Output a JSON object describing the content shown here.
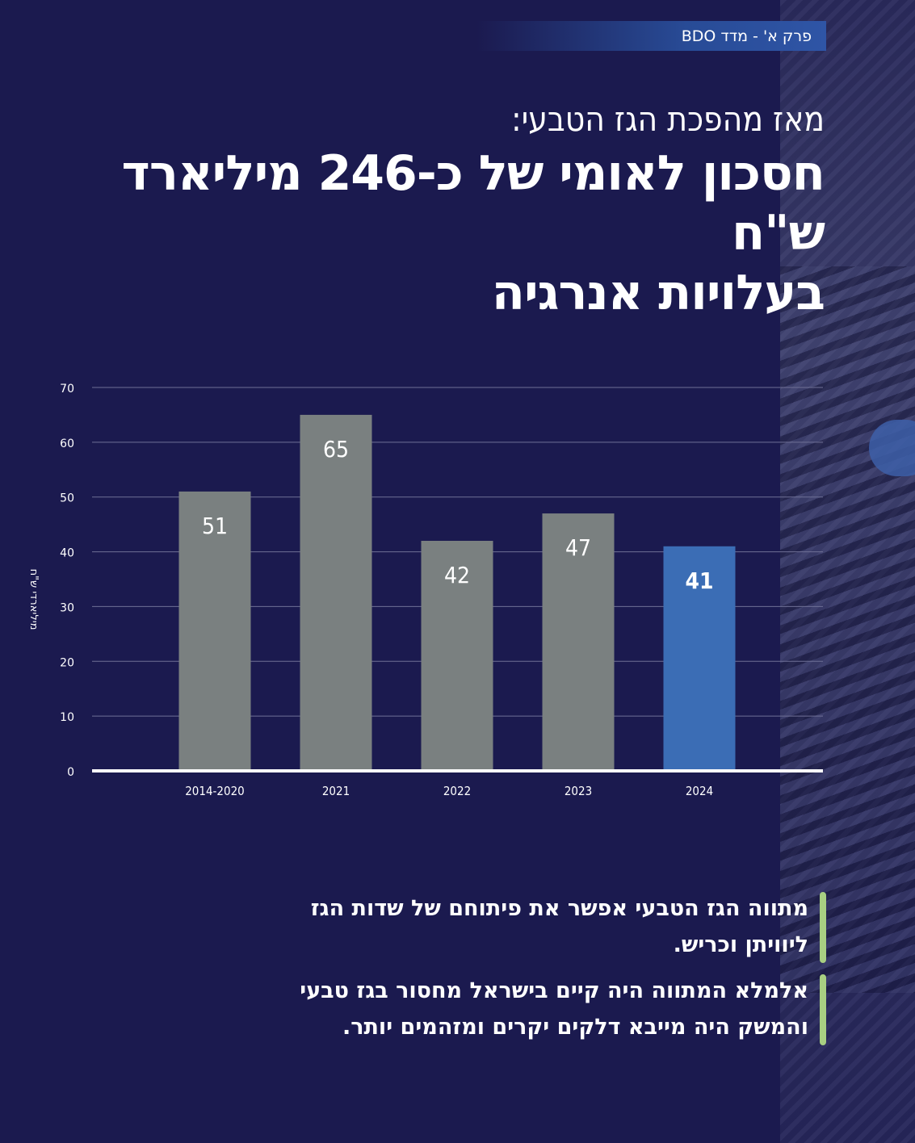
{
  "header": {
    "section_tag": "פרק א' - מדד BDO"
  },
  "title": {
    "subtitle": "מאז מהפכת הגז הטבעי:",
    "headline_line1": "חסכון לאומי של כ-246 מיליארד ש\"ח",
    "headline_line2": "בעלויות אנרגיה"
  },
  "chart_data": {
    "type": "bar",
    "categories": [
      "2014-2020",
      "2021",
      "2022",
      "2023",
      "2024"
    ],
    "values": [
      51,
      65,
      42,
      47,
      41
    ],
    "ylabel": "מיליארדי ש\"ח",
    "ylim": [
      0,
      70
    ],
    "yticks": [
      0,
      10,
      20,
      30,
      40,
      50,
      60,
      70
    ],
    "grid": true,
    "colors": {
      "default_bar": "#7a8080",
      "highlight_bar": "#3b6db5",
      "gridline": "#6f7096",
      "axis": "#ffffff"
    },
    "highlight_index": 4
  },
  "bullets": [
    {
      "text_line1": "מתווה הגז הטבעי אפשר את פיתוחם של שדות הגז",
      "text_line2": "ליוויתן וכריש."
    },
    {
      "text_line1": "אלמלא המתווה היה קיים בישראל מחסור בגז טבעי",
      "text_line2": "והמשק היה מייבא דלקים יקרים ומזהמים יותר."
    }
  ],
  "accent_color": "#a8cf82"
}
